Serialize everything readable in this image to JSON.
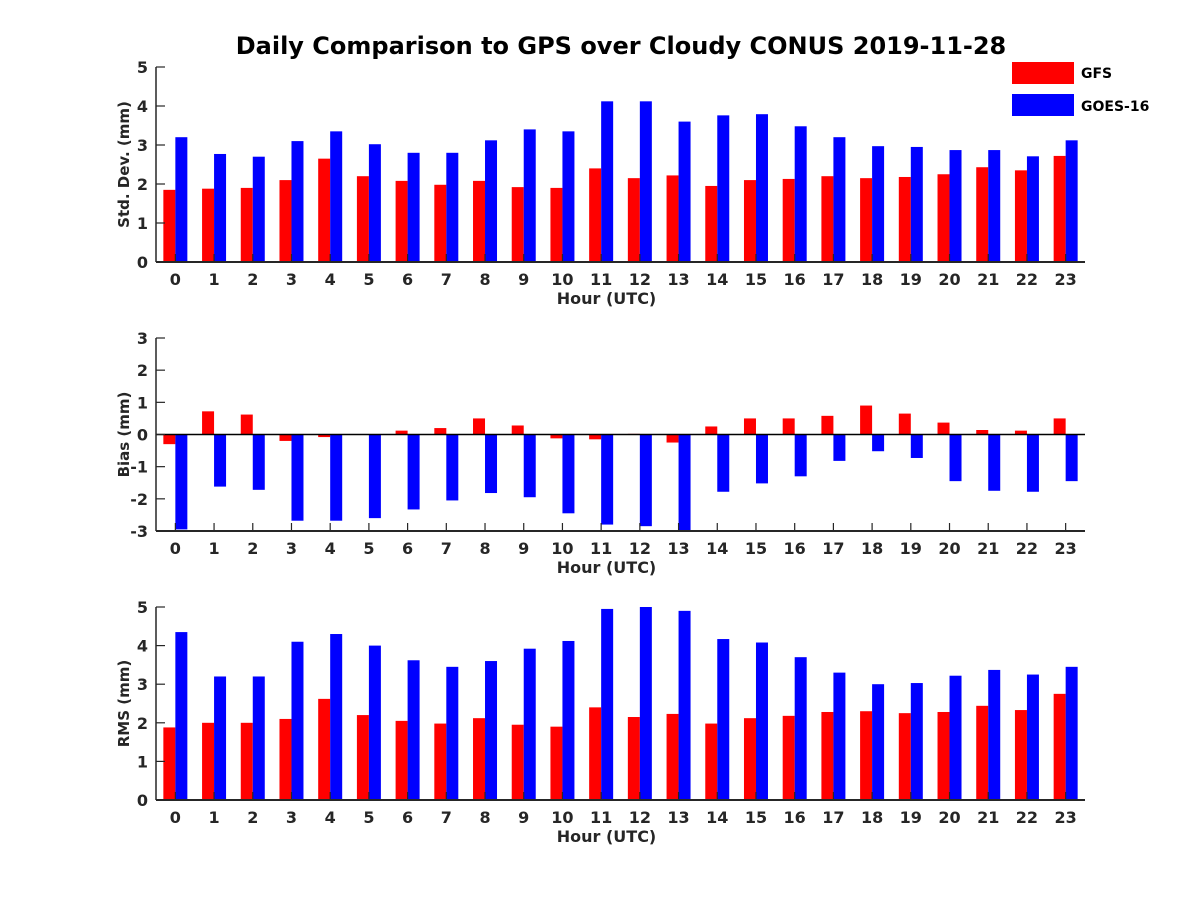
{
  "title": "Daily Comparison to GPS over Cloudy CONUS 2019-11-28",
  "colors": {
    "GFS": "#ff0000",
    "GOES-16": "#0000ff"
  },
  "legend": {
    "items": [
      "GFS",
      "GOES-16"
    ],
    "placement": "top-right"
  },
  "chart_data": [
    {
      "type": "bar",
      "ylabel": "Std. Dev. (mm)",
      "xlabel": "Hour (UTC)",
      "ylim": [
        0,
        5
      ],
      "yticks": [
        0,
        1,
        2,
        3,
        4,
        5
      ],
      "categories": [
        "0",
        "1",
        "2",
        "3",
        "4",
        "5",
        "6",
        "7",
        "8",
        "9",
        "10",
        "11",
        "12",
        "13",
        "14",
        "15",
        "16",
        "17",
        "18",
        "19",
        "20",
        "21",
        "22",
        "23"
      ],
      "series": [
        {
          "name": "GFS",
          "values": [
            1.85,
            1.88,
            1.9,
            2.1,
            2.65,
            2.2,
            2.08,
            1.98,
            2.08,
            1.92,
            1.9,
            2.4,
            2.15,
            2.22,
            1.95,
            2.1,
            2.13,
            2.2,
            2.15,
            2.18,
            2.25,
            2.43,
            2.35,
            2.72
          ]
        },
        {
          "name": "GOES-16",
          "values": [
            3.2,
            2.77,
            2.7,
            3.1,
            3.35,
            3.02,
            2.8,
            2.8,
            3.12,
            3.4,
            3.35,
            4.12,
            4.12,
            3.6,
            3.76,
            3.79,
            3.48,
            3.2,
            2.97,
            2.95,
            2.87,
            2.87,
            2.71,
            3.12
          ]
        }
      ]
    },
    {
      "type": "bar",
      "ylabel": "Bias (mm)",
      "xlabel": "Hour (UTC)",
      "ylim": [
        -3,
        3
      ],
      "yticks": [
        -3,
        -2,
        -1,
        0,
        1,
        2,
        3
      ],
      "categories": [
        "0",
        "1",
        "2",
        "3",
        "4",
        "5",
        "6",
        "7",
        "8",
        "9",
        "10",
        "11",
        "12",
        "13",
        "14",
        "15",
        "16",
        "17",
        "18",
        "19",
        "20",
        "21",
        "22",
        "23"
      ],
      "series": [
        {
          "name": "GFS",
          "values": [
            -0.3,
            0.72,
            0.62,
            -0.2,
            -0.08,
            0.0,
            0.12,
            0.2,
            0.5,
            0.28,
            -0.12,
            -0.15,
            0.02,
            -0.25,
            0.25,
            0.5,
            0.5,
            0.58,
            0.9,
            0.65,
            0.37,
            0.14,
            0.12,
            0.5
          ]
        },
        {
          "name": "GOES-16",
          "values": [
            -2.95,
            -1.62,
            -1.72,
            -2.68,
            -2.68,
            -2.6,
            -2.33,
            -2.05,
            -1.82,
            -1.95,
            -2.45,
            -2.8,
            -2.85,
            -3.0,
            -1.78,
            -1.52,
            -1.3,
            -0.82,
            -0.52,
            -0.73,
            -1.45,
            -1.75,
            -1.78,
            -1.45
          ]
        }
      ]
    },
    {
      "type": "bar",
      "ylabel": "RMS (mm)",
      "xlabel": "Hour (UTC)",
      "ylim": [
        0,
        5
      ],
      "yticks": [
        0,
        1,
        2,
        3,
        4,
        5
      ],
      "categories": [
        "0",
        "1",
        "2",
        "3",
        "4",
        "5",
        "6",
        "7",
        "8",
        "9",
        "10",
        "11",
        "12",
        "13",
        "14",
        "15",
        "16",
        "17",
        "18",
        "19",
        "20",
        "21",
        "22",
        "23"
      ],
      "series": [
        {
          "name": "GFS",
          "values": [
            1.88,
            2.0,
            2.0,
            2.1,
            2.62,
            2.2,
            2.05,
            1.98,
            2.12,
            1.95,
            1.9,
            2.4,
            2.15,
            2.23,
            1.98,
            2.12,
            2.18,
            2.28,
            2.3,
            2.25,
            2.28,
            2.44,
            2.33,
            2.75
          ]
        },
        {
          "name": "GOES-16",
          "values": [
            4.35,
            3.2,
            3.2,
            4.1,
            4.3,
            4.0,
            3.62,
            3.45,
            3.6,
            3.92,
            4.12,
            4.95,
            5.0,
            4.9,
            4.17,
            4.08,
            3.7,
            3.3,
            3.0,
            3.03,
            3.22,
            3.37,
            3.25,
            3.45
          ]
        }
      ]
    }
  ]
}
